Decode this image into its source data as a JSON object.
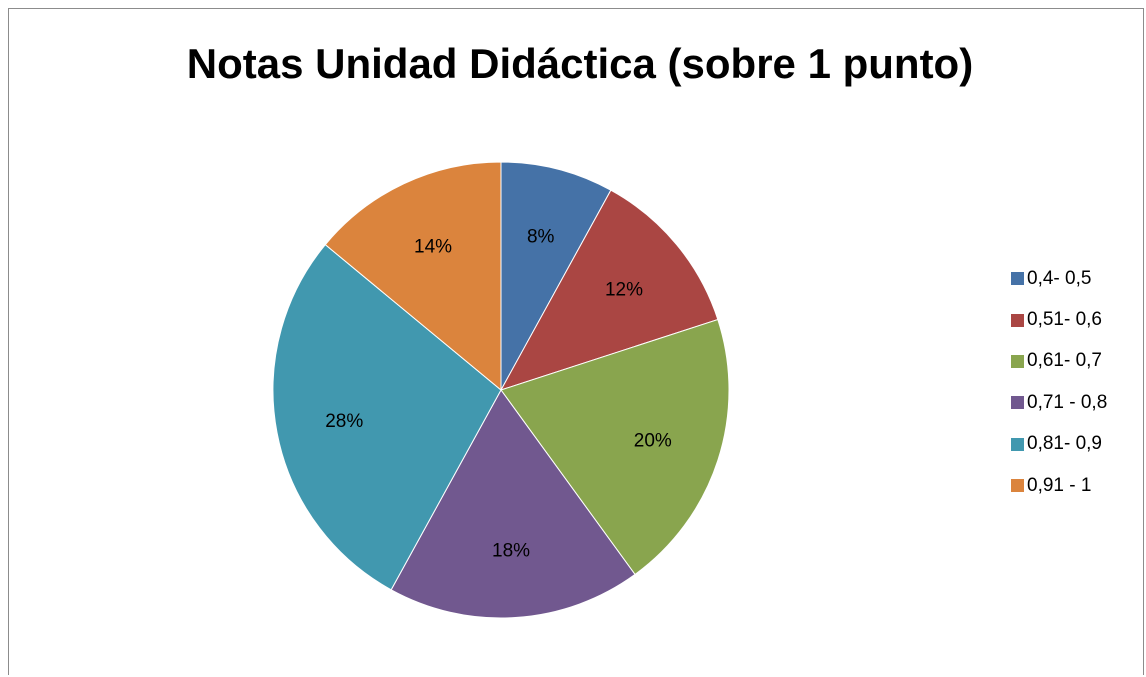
{
  "chart_data": {
    "type": "pie",
    "title": "Notas Unidad Didáctica (sobre 1 punto)",
    "categories": [
      "0,4- 0,5",
      "0,51- 0,6",
      "0,61- 0,7",
      "0,71 - 0,8",
      "0,81- 0,9",
      "0,91 - 1"
    ],
    "values": [
      8,
      12,
      20,
      18,
      28,
      14
    ],
    "labels": [
      "8%",
      "12%",
      "20%",
      "18%",
      "28%",
      "14%"
    ],
    "colors": [
      "#4572a7",
      "#aa4643",
      "#89a54e",
      "#71588f",
      "#4198af",
      "#db843d"
    ],
    "start": "12 o'clock",
    "direction": "clockwise",
    "legend_position": "right"
  }
}
